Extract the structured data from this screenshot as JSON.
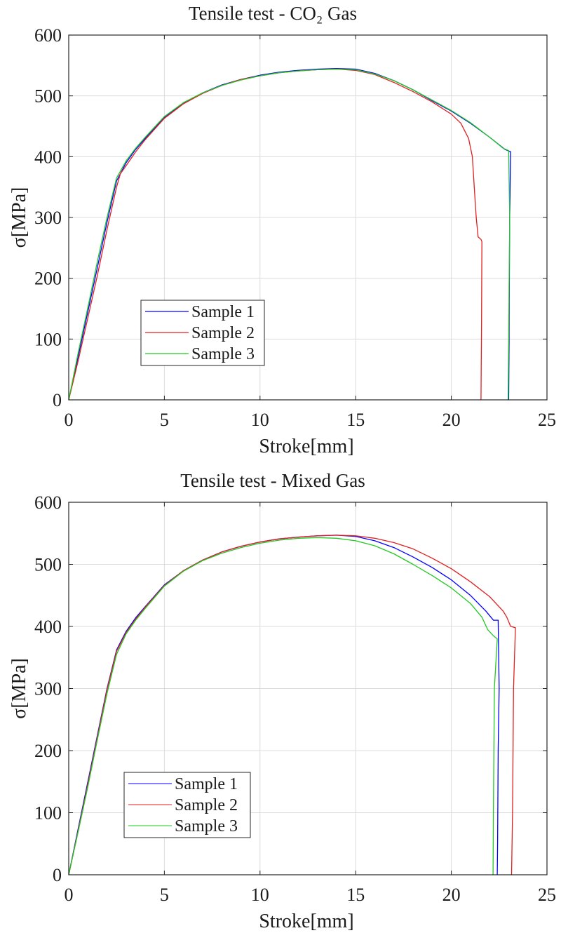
{
  "chart_data": [
    {
      "type": "line",
      "title": "Tensile test - CO₂ Gas",
      "xlabel": "Stroke[mm]",
      "ylabel": "σ[MPa]",
      "xlim": [
        0,
        25
      ],
      "ylim": [
        0,
        600
      ],
      "xticks": [
        0,
        5,
        10,
        15,
        20,
        25
      ],
      "yticks": [
        0,
        100,
        200,
        300,
        400,
        500,
        600
      ],
      "grid": true,
      "legend_position": "bottom-left",
      "series": [
        {
          "name": "Sample 1",
          "color": "#0000ff",
          "x": [
            0,
            0.5,
            1,
            1.5,
            2,
            2.5,
            3,
            3.5,
            4,
            5,
            6,
            7,
            8,
            9,
            10,
            11,
            12,
            13,
            14,
            15,
            16,
            17,
            18,
            19,
            20,
            21,
            22,
            22.8,
            23.1,
            23.05,
            23.02,
            23.0
          ],
          "y": [
            0,
            72,
            145,
            218,
            292,
            360,
            390,
            412,
            430,
            465,
            488,
            505,
            518,
            527,
            534,
            539,
            542,
            544,
            545,
            544,
            537,
            525,
            510,
            492,
            475,
            455,
            432,
            412,
            408,
            300,
            100,
            0
          ]
        },
        {
          "name": "Sample 2",
          "color": "#e02020",
          "x": [
            0,
            0.5,
            1,
            1.5,
            2,
            2.5,
            2.7,
            3,
            3.5,
            4,
            5,
            6,
            7,
            8,
            9,
            10,
            11,
            12,
            13,
            14,
            15,
            16,
            17,
            18,
            19,
            20,
            20.5,
            20.9,
            21.1,
            21.2,
            21.3,
            21.4,
            21.55,
            21.6,
            21.58,
            21.55
          ],
          "y": [
            0,
            65,
            135,
            205,
            280,
            350,
            372,
            385,
            408,
            428,
            463,
            487,
            504,
            517,
            527,
            533,
            538,
            541,
            543,
            544,
            542,
            535,
            522,
            507,
            490,
            470,
            455,
            430,
            400,
            350,
            300,
            268,
            264,
            260,
            130,
            0
          ]
        },
        {
          "name": "Sample 3",
          "color": "#22c822",
          "x": [
            0,
            0.5,
            1,
            1.5,
            2,
            2.5,
            3,
            3.5,
            4,
            5,
            6,
            7,
            8,
            9,
            10,
            11,
            12,
            13,
            14,
            15,
            16,
            17,
            18,
            19,
            20,
            21,
            22,
            22.7,
            23.0,
            23.05,
            23.0,
            22.97
          ],
          "y": [
            0,
            78,
            152,
            228,
            300,
            365,
            393,
            414,
            432,
            466,
            489,
            505,
            517,
            526,
            533,
            538,
            541,
            543,
            544,
            543,
            536,
            525,
            510,
            493,
            476,
            456,
            432,
            414,
            410,
            300,
            100,
            0
          ]
        }
      ]
    },
    {
      "type": "line",
      "title": "Tensile test - Mixed Gas",
      "xlabel": "Stroke[mm]",
      "ylabel": "σ[MPa]",
      "xlim": [
        0,
        25
      ],
      "ylim": [
        0,
        600
      ],
      "xticks": [
        0,
        5,
        10,
        15,
        20,
        25
      ],
      "yticks": [
        0,
        100,
        200,
        300,
        400,
        500,
        600
      ],
      "grid": true,
      "legend_position": "bottom-left",
      "series": [
        {
          "name": "Sample 1",
          "color": "#0000ff",
          "x": [
            0,
            0.5,
            1,
            1.5,
            2,
            2.5,
            3,
            3.5,
            4,
            5,
            6,
            7,
            8,
            9,
            10,
            11,
            12,
            13,
            14,
            15,
            16,
            17,
            18,
            19,
            20,
            21,
            21.8,
            22.2,
            22.45,
            22.5,
            22.45,
            22.42,
            22.4
          ],
          "y": [
            0,
            75,
            150,
            225,
            300,
            362,
            392,
            414,
            432,
            467,
            490,
            507,
            520,
            529,
            536,
            541,
            544,
            546,
            547,
            545,
            538,
            527,
            512,
            495,
            475,
            450,
            425,
            410,
            410,
            300,
            200,
            50,
            0
          ]
        },
        {
          "name": "Sample 2",
          "color": "#e02020",
          "x": [
            0,
            0.5,
            1,
            1.5,
            2,
            2.5,
            3,
            3.5,
            4,
            5,
            6,
            7,
            8,
            9,
            10,
            11,
            12,
            13,
            14,
            15,
            16,
            17,
            18,
            19,
            20,
            21,
            22,
            22.7,
            22.9,
            23.1,
            23.35,
            23.25,
            23.2,
            23.15
          ],
          "y": [
            0,
            72,
            146,
            222,
            298,
            360,
            390,
            412,
            431,
            466,
            490,
            507,
            520,
            529,
            536,
            541,
            544,
            546,
            547,
            546,
            542,
            535,
            525,
            510,
            493,
            472,
            448,
            425,
            415,
            400,
            398,
            300,
            100,
            0
          ]
        },
        {
          "name": "Sample 3",
          "color": "#22c822",
          "x": [
            0,
            0.5,
            1,
            1.5,
            2,
            2.5,
            3,
            3.5,
            4,
            5,
            6,
            7,
            8,
            9,
            10,
            11,
            12,
            13,
            14,
            15,
            16,
            17,
            18,
            19,
            20,
            21,
            21.6,
            21.9,
            22.2,
            22.4,
            22.25,
            22.2,
            22.18
          ],
          "y": [
            0,
            70,
            142,
            218,
            292,
            355,
            388,
            410,
            429,
            465,
            489,
            506,
            518,
            527,
            534,
            539,
            542,
            543,
            542,
            538,
            530,
            517,
            500,
            482,
            462,
            437,
            415,
            395,
            385,
            380,
            300,
            100,
            0
          ]
        }
      ]
    }
  ]
}
